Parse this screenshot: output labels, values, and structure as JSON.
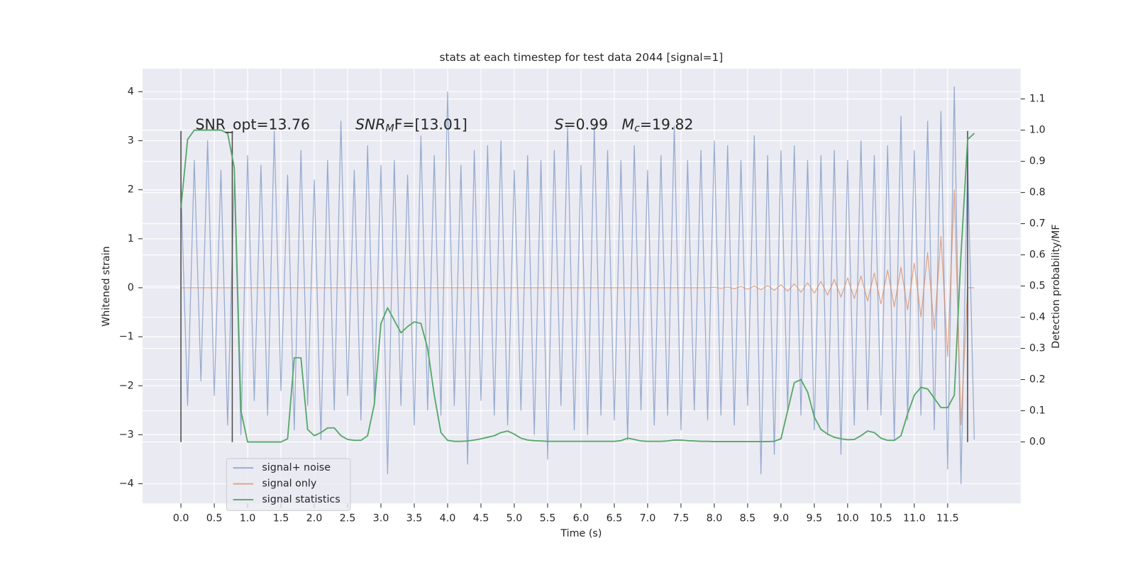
{
  "chart_data": {
    "type": "line",
    "title": "stats at each timestep for test data 2044 [signal=1]",
    "xlabel": "Time (s)",
    "ylabel": "Whitened strain",
    "y2label": "Detection probability/MF",
    "grid": true,
    "legend": "lower left",
    "xlim": [
      -0.575,
      12.595
    ],
    "ylim": [
      -4.4,
      4.47
    ],
    "y2lim": [
      -0.197,
      1.197
    ],
    "xticks": [
      {
        "value": 0,
        "label": "0.0"
      },
      {
        "value": 0.5,
        "label": "0.5"
      },
      {
        "value": 1,
        "label": "1.0"
      },
      {
        "value": 1.5,
        "label": "1.5"
      },
      {
        "value": 2,
        "label": "2.0"
      },
      {
        "value": 2.5,
        "label": "2.5"
      },
      {
        "value": 3,
        "label": "3.0"
      },
      {
        "value": 3.5,
        "label": "3.5"
      },
      {
        "value": 4,
        "label": "4.0"
      },
      {
        "value": 4.5,
        "label": "4.5"
      },
      {
        "value": 5,
        "label": "5.0"
      },
      {
        "value": 5.5,
        "label": "5.5"
      },
      {
        "value": 6,
        "label": "6.0"
      },
      {
        "value": 6.5,
        "label": "6.5"
      },
      {
        "value": 7,
        "label": "7.0"
      },
      {
        "value": 7.5,
        "label": "7.5"
      },
      {
        "value": 8,
        "label": "8.0"
      },
      {
        "value": 8.5,
        "label": "8.5"
      },
      {
        "value": 9,
        "label": "9.0"
      },
      {
        "value": 9.5,
        "label": "9.5"
      },
      {
        "value": 10,
        "label": "10.0"
      },
      {
        "value": 10.5,
        "label": "10.5"
      },
      {
        "value": 11,
        "label": "11.0"
      },
      {
        "value": 11.5,
        "label": "11.5"
      }
    ],
    "yticks": [
      {
        "value": -4,
        "label": "−4"
      },
      {
        "value": -3,
        "label": "−3"
      },
      {
        "value": -2,
        "label": "−2"
      },
      {
        "value": -1,
        "label": "−1"
      },
      0,
      1,
      2,
      3,
      4
    ],
    "y2ticks": [
      {
        "value": 0,
        "label": "0.0"
      },
      {
        "value": 0.1,
        "label": "0.1"
      },
      {
        "value": 0.2,
        "label": "0.2"
      },
      {
        "value": 0.3,
        "label": "0.3"
      },
      {
        "value": 0.4,
        "label": "0.4"
      },
      {
        "value": 0.5,
        "label": "0.5"
      },
      {
        "value": 0.6,
        "label": "0.6"
      },
      {
        "value": 0.7,
        "label": "0.7"
      },
      {
        "value": 0.8,
        "label": "0.8"
      },
      {
        "value": 0.9,
        "label": "0.9"
      },
      {
        "value": 1,
        "label": "1.0"
      },
      {
        "value": 1.1,
        "label": "1.1"
      }
    ],
    "annotations": [
      [
        {
          "text": "SNR_opt=13.76"
        }
      ],
      [
        {
          "text": "SNR",
          "italic": true
        },
        {
          "text": "M",
          "italic": true,
          "sub": true
        },
        {
          "text": "F=[13.01]"
        }
      ],
      [
        {
          "text": "S",
          "italic": true
        },
        {
          "text": "=0.99   "
        },
        {
          "text": "M",
          "italic": true
        },
        {
          "text": "c",
          "italic": true,
          "sub": true
        },
        {
          "text": "=19.82"
        }
      ]
    ],
    "markers": {
      "x": [
        0,
        0.77,
        11.8
      ],
      "ymin": -3.15,
      "ymax": 3.2,
      "color": "#4a4a4a"
    },
    "x": [
      0,
      0.1,
      0.2,
      0.3,
      0.4,
      0.5,
      0.6,
      0.7,
      0.8,
      0.9,
      1,
      1.1,
      1.2,
      1.3,
      1.4,
      1.5,
      1.6,
      1.7,
      1.8,
      1.9,
      2,
      2.1,
      2.2,
      2.3,
      2.4,
      2.5,
      2.6,
      2.7,
      2.8,
      2.9,
      3,
      3.1,
      3.2,
      3.3,
      3.4,
      3.5,
      3.6,
      3.7,
      3.8,
      3.9,
      4,
      4.1,
      4.2,
      4.3,
      4.4,
      4.5,
      4.6,
      4.7,
      4.8,
      4.9,
      5,
      5.1,
      5.2,
      5.3,
      5.4,
      5.5,
      5.6,
      5.7,
      5.8,
      5.9,
      6,
      6.1,
      6.2,
      6.3,
      6.4,
      6.5,
      6.6,
      6.7,
      6.8,
      6.9,
      7,
      7.1,
      7.2,
      7.3,
      7.4,
      7.5,
      7.6,
      7.7,
      7.8,
      7.9,
      8,
      8.1,
      8.2,
      8.3,
      8.4,
      8.5,
      8.6,
      8.7,
      8.8,
      8.9,
      9,
      9.1,
      9.2,
      9.3,
      9.4,
      9.5,
      9.6,
      9.7,
      9.8,
      9.9,
      10,
      10.1,
      10.2,
      10.3,
      10.4,
      10.5,
      10.6,
      10.7,
      10.8,
      10.9,
      11,
      11.1,
      11.2,
      11.3,
      11.4,
      11.5,
      11.6,
      11.7,
      11.8,
      11.9
    ],
    "series": [
      {
        "name": "signal+ noise",
        "color": "#4c72b0",
        "values": [
          2.1,
          -2.4,
          2.6,
          -1.9,
          3.0,
          -2.2,
          2.4,
          -2.8,
          2.2,
          -3.0,
          2.7,
          -2.3,
          2.5,
          -2.6,
          3.2,
          -2.1,
          2.3,
          -2.9,
          2.8,
          -2.4,
          2.2,
          -3.1,
          2.6,
          -2.5,
          3.4,
          -2.2,
          2.4,
          -2.7,
          2.9,
          -2.3,
          2.5,
          -3.8,
          2.6,
          -2.4,
          2.3,
          -2.8,
          3.1,
          -2.5,
          2.7,
          -2.6,
          4.0,
          -2.4,
          2.5,
          -3.6,
          2.8,
          -2.3,
          2.9,
          -2.6,
          3.0,
          -2.8,
          2.4,
          -2.5,
          2.7,
          -3.0,
          2.6,
          -3.5,
          2.8,
          -2.4,
          3.3,
          -2.9,
          2.5,
          -3.0,
          3.3,
          -2.6,
          2.8,
          -2.7,
          2.6,
          -3.1,
          2.9,
          -2.5,
          2.4,
          -2.8,
          2.7,
          -2.6,
          3.3,
          -2.9,
          2.6,
          -2.5,
          2.8,
          -2.7,
          3.0,
          -2.6,
          2.9,
          -2.8,
          2.6,
          -2.4,
          3.1,
          -3.8,
          2.7,
          -3.4,
          2.8,
          -2.5,
          2.9,
          -2.6,
          2.6,
          -2.9,
          2.7,
          -3.0,
          2.8,
          -3.4,
          2.6,
          -2.8,
          3.0,
          -2.5,
          2.7,
          -2.6,
          2.9,
          -3.1,
          3.5,
          -2.7,
          2.8,
          -2.6,
          3.4,
          -2.9,
          3.6,
          -3.7,
          4.1,
          -4.0,
          2.6,
          -3.1
        ]
      },
      {
        "name": "signal only",
        "color": "#dd8452",
        "values": [
          0,
          0,
          0,
          0,
          0,
          0,
          0,
          0,
          0,
          0,
          0,
          0,
          0,
          0,
          0,
          0,
          0,
          0,
          0,
          0,
          0,
          0,
          0,
          0,
          0,
          0,
          0,
          0,
          0,
          0,
          0,
          0,
          0,
          0,
          0,
          0,
          0,
          0,
          0,
          0,
          0,
          0,
          0,
          0,
          0,
          0,
          0,
          0,
          0,
          0,
          0,
          0,
          0,
          0,
          0,
          0,
          0,
          0,
          0,
          0,
          0,
          0,
          0,
          0,
          0,
          0,
          0,
          0,
          0,
          0,
          0,
          0,
          0,
          0,
          0,
          0,
          0,
          0,
          0,
          0,
          0.01,
          -0.01,
          0.015,
          -0.02,
          0.025,
          -0.03,
          0.035,
          -0.04,
          0.045,
          -0.05,
          0.06,
          -0.07,
          0.08,
          -0.09,
          0.1,
          -0.11,
          0.13,
          -0.15,
          0.17,
          -0.19,
          0.2,
          -0.22,
          0.24,
          -0.27,
          0.3,
          -0.33,
          0.36,
          -0.39,
          0.42,
          -0.45,
          0.5,
          -0.6,
          0.72,
          -0.85,
          1.05,
          -1.4,
          2.0,
          -2.8,
          0,
          0
        ]
      },
      {
        "name": "signal statistics",
        "color": "#55a868",
        "axis": "y2",
        "values": [
          0.75,
          0.97,
          1.0,
          1.0,
          1.0,
          1.0,
          1.0,
          0.99,
          0.88,
          0.1,
          0.0,
          0.0,
          0.0,
          0.0,
          0.0,
          0.0,
          0.01,
          0.27,
          0.27,
          0.04,
          0.02,
          0.03,
          0.045,
          0.045,
          0.02,
          0.008,
          0.005,
          0.005,
          0.02,
          0.12,
          0.38,
          0.43,
          0.39,
          0.35,
          0.37,
          0.385,
          0.38,
          0.3,
          0.15,
          0.03,
          0.005,
          0.002,
          0.002,
          0.003,
          0.006,
          0.01,
          0.015,
          0.02,
          0.03,
          0.035,
          0.025,
          0.012,
          0.006,
          0.004,
          0.003,
          0.002,
          0.002,
          0.002,
          0.002,
          0.002,
          0.002,
          0.002,
          0.002,
          0.002,
          0.002,
          0.002,
          0.004,
          0.012,
          0.008,
          0.003,
          0.002,
          0.002,
          0.002,
          0.003,
          0.006,
          0.006,
          0.004,
          0.003,
          0.002,
          0.002,
          0.001,
          0.001,
          0.001,
          0.001,
          0.001,
          0.001,
          0.001,
          0.001,
          0.001,
          0.002,
          0.01,
          0.1,
          0.19,
          0.2,
          0.16,
          0.08,
          0.04,
          0.025,
          0.015,
          0.01,
          0.007,
          0.008,
          0.02,
          0.035,
          0.03,
          0.012,
          0.005,
          0.005,
          0.02,
          0.09,
          0.15,
          0.175,
          0.17,
          0.14,
          0.11,
          0.11,
          0.15,
          0.6,
          0.97,
          0.99
        ]
      }
    ]
  }
}
